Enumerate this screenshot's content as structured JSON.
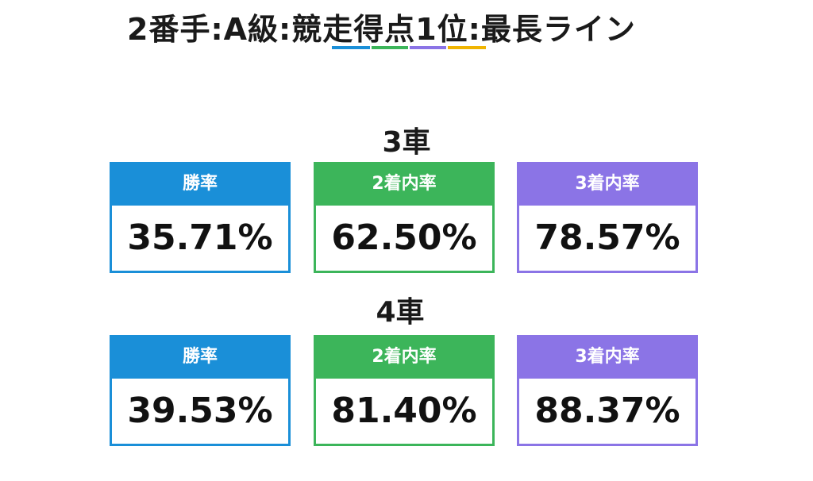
{
  "title": "2番手:A級:競走得点1位:最長ライン",
  "colors": {
    "blue": "#1a8fd8",
    "green": "#3cb55a",
    "purple": "#8b74e6",
    "yellow": "#f0b400"
  },
  "sections": [
    {
      "heading": "3車",
      "stats": [
        {
          "label": "勝率",
          "value": "35.71%"
        },
        {
          "label": "2着内率",
          "value": "62.50%"
        },
        {
          "label": "3着内率",
          "value": "78.57%"
        }
      ]
    },
    {
      "heading": "4車",
      "stats": [
        {
          "label": "勝率",
          "value": "39.53%"
        },
        {
          "label": "2着内率",
          "value": "81.40%"
        },
        {
          "label": "3着内率",
          "value": "88.37%"
        }
      ]
    }
  ]
}
